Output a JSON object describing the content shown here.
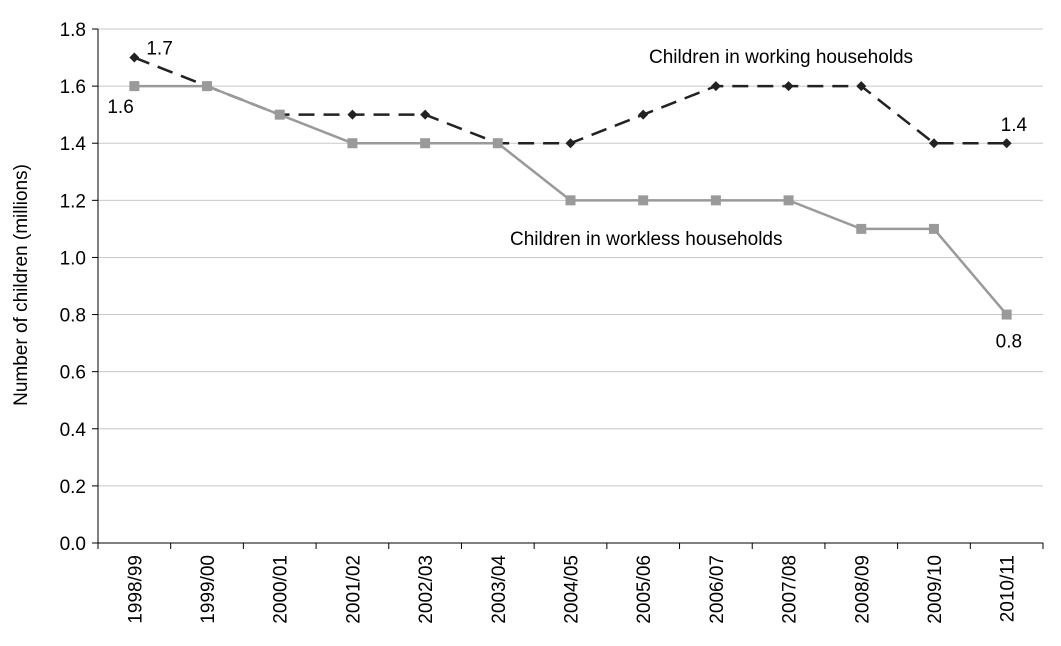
{
  "chart_data": {
    "type": "line",
    "title": "",
    "ylabel": "Number of children (millions)",
    "xlabel": "",
    "ylim": [
      0,
      1.8
    ],
    "yticks": [
      "0.0",
      "0.2",
      "0.4",
      "0.6",
      "0.8",
      "1.0",
      "1.2",
      "1.4",
      "1.6",
      "1.8"
    ],
    "grid": "horizontal",
    "categories": [
      "1998/99",
      "1999/00",
      "2000/01",
      "2001/02",
      "2002/03",
      "2003/04",
      "2004/05",
      "2005/06",
      "2006/07",
      "2007/08",
      "2008/09",
      "2009/10",
      "2010/11"
    ],
    "series": [
      {
        "name": "Children in working households",
        "values": [
          1.7,
          1.6,
          1.5,
          1.5,
          1.5,
          1.4,
          1.4,
          1.5,
          1.6,
          1.6,
          1.6,
          1.4,
          1.4
        ],
        "color": "#222222",
        "line_style": "dashed",
        "marker": "diamond"
      },
      {
        "name": "Children in workless households",
        "values": [
          1.6,
          1.6,
          1.5,
          1.4,
          1.4,
          1.4,
          1.2,
          1.2,
          1.2,
          1.2,
          1.1,
          1.1,
          0.8
        ],
        "color": "#9a9a9a",
        "line_style": "solid",
        "marker": "square"
      }
    ],
    "data_labels": [
      {
        "series": 0,
        "index": 0,
        "text": "1.7"
      },
      {
        "series": 0,
        "index": 12,
        "text": "1.4"
      },
      {
        "series": 1,
        "index": 0,
        "text": "1.6"
      },
      {
        "series": 1,
        "index": 12,
        "text": "0.8"
      }
    ]
  }
}
